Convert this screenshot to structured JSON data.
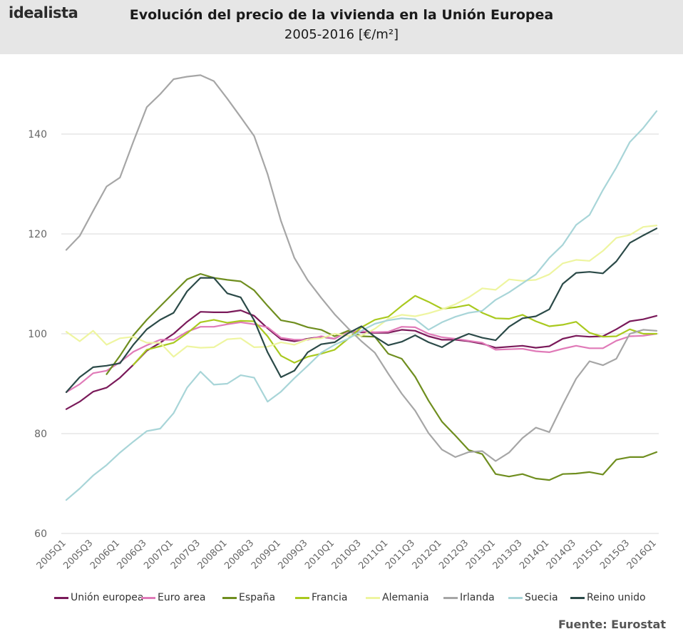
{
  "header": {
    "logo": "idealista",
    "title": "Evolución del precio de la vivienda en la Unión Europea",
    "subtitle": "2005-2016 [€/m²]"
  },
  "source": "Fuente: Eurostat",
  "chart_data": {
    "type": "line",
    "title": "Evolución del precio de la vivienda en la Unión Europea",
    "subtitle": "2005-2016 [€/m²]",
    "xlabel": "",
    "ylabel": "",
    "ylim": [
      60,
      155
    ],
    "yticks": [
      "60",
      "80",
      "100",
      "120",
      "140"
    ],
    "grid": "horizontal",
    "legend": "bottom",
    "x": [
      "2005Q1",
      "2005Q2",
      "2005Q3",
      "2005Q4",
      "2006Q1",
      "2006Q2",
      "2006Q3",
      "2006Q4",
      "2007Q1",
      "2007Q2",
      "2007Q3",
      "2007Q4",
      "2008Q1",
      "2008Q2",
      "2008Q3",
      "2008Q4",
      "2009Q1",
      "2009Q2",
      "2009Q3",
      "2009Q4",
      "2010Q1",
      "2010Q2",
      "2010Q3",
      "2010Q4",
      "2011Q1",
      "2011Q2",
      "2011Q3",
      "2011Q4",
      "2012Q1",
      "2012Q2",
      "2012Q3",
      "2012Q4",
      "2013Q1",
      "2013Q2",
      "2013Q3",
      "2013Q4",
      "2014Q1",
      "2014Q2",
      "2014Q3",
      "2014Q4",
      "2015Q1",
      "2015Q2",
      "2015Q3",
      "2015Q4",
      "2016Q1"
    ],
    "xtick_labels": [
      "2005Q1",
      "2005Q3",
      "2006Q1",
      "2006Q3",
      "2007Q1",
      "2007Q3",
      "2008Q1",
      "2008Q3",
      "2009Q1",
      "2009Q3",
      "2010Q1",
      "2010Q3",
      "2011Q1",
      "2011Q3",
      "2012Q1",
      "2012Q3",
      "2013Q1",
      "2013Q3",
      "2014Q1",
      "2014Q3",
      "2015Q1",
      "2015Q3",
      "2016Q1"
    ],
    "series": [
      {
        "name": "Unión europea",
        "color": "#7a1a5a",
        "values": [
          84.9,
          86.4,
          88.4,
          89.2,
          91.2,
          93.8,
          96.6,
          98.2,
          100.0,
          102.4,
          104.4,
          104.3,
          104.3,
          104.7,
          103.6,
          101.1,
          98.9,
          98.5,
          99.0,
          99.4,
          99.0,
          100.6,
          100.3,
          100.2,
          100.2,
          100.8,
          100.6,
          99.5,
          98.8,
          98.8,
          98.5,
          98.0,
          97.2,
          97.4,
          97.6,
          97.2,
          97.5,
          99.0,
          99.6,
          99.4,
          99.5,
          100.9,
          102.5,
          102.9,
          103.6
        ]
      },
      {
        "name": "Euro area",
        "color": "#e07ab8",
        "values": [
          88.3,
          89.9,
          92.1,
          92.6,
          94.3,
          96.4,
          97.7,
          98.8,
          98.8,
          100.4,
          101.4,
          101.4,
          101.9,
          102.3,
          101.9,
          101.3,
          99.2,
          98.8,
          98.8,
          99.5,
          99.0,
          100.5,
          100.5,
          100.3,
          100.4,
          101.4,
          101.3,
          100.0,
          99.3,
          99.0,
          98.6,
          98.2,
          96.8,
          96.9,
          97.0,
          96.5,
          96.3,
          97.0,
          97.6,
          97.1,
          97.1,
          98.6,
          99.5,
          99.6,
          100.0
        ]
      },
      {
        "name": "España",
        "color": "#6f8e1f",
        "values": [
          null,
          null,
          null,
          91.9,
          95.6,
          99.7,
          102.8,
          105.5,
          108.2,
          110.9,
          112.0,
          111.2,
          110.8,
          110.5,
          108.7,
          105.6,
          102.7,
          102.2,
          101.3,
          100.8,
          99.5,
          100.6,
          99.5,
          99.4,
          96.0,
          95.0,
          91.4,
          86.6,
          82.4,
          79.6,
          76.7,
          75.9,
          71.9,
          71.4,
          71.9,
          71.0,
          70.7,
          71.9,
          72.0,
          72.3,
          71.8,
          74.8,
          75.3,
          75.3,
          76.3
        ]
      },
      {
        "name": "Francia",
        "color": "#a9c91e",
        "values": [
          null,
          null,
          null,
          null,
          null,
          93.8,
          96.8,
          97.5,
          98.2,
          100.1,
          102.3,
          102.8,
          102.2,
          102.6,
          102.5,
          99.5,
          95.6,
          94.2,
          95.4,
          96.0,
          96.8,
          99.0,
          101.3,
          102.8,
          103.4,
          105.6,
          107.6,
          106.4,
          105.0,
          105.3,
          105.8,
          104.2,
          103.1,
          103.0,
          103.8,
          102.5,
          101.5,
          101.8,
          102.4,
          100.2,
          99.4,
          99.5,
          100.9,
          100.0,
          100.0
        ]
      },
      {
        "name": "Alemania",
        "color": "#eef5a0",
        "values": [
          100.4,
          98.5,
          100.6,
          97.8,
          99.1,
          99.4,
          98.2,
          98.2,
          95.4,
          97.5,
          97.2,
          97.3,
          98.9,
          99.1,
          97.3,
          97.4,
          98.3,
          97.8,
          98.9,
          99.1,
          100.0,
          99.6,
          99.6,
          101.0,
          103.0,
          103.8,
          103.5,
          104.1,
          104.9,
          105.9,
          107.3,
          109.1,
          108.8,
          110.9,
          110.6,
          110.8,
          111.9,
          114.1,
          114.8,
          114.6,
          116.6,
          119.2,
          119.8,
          121.4,
          121.7
        ]
      },
      {
        "name": "Irlanda",
        "color": "#a6a6a6",
        "values": [
          116.8,
          119.6,
          124.6,
          129.5,
          131.3,
          138.5,
          145.4,
          148.0,
          151.0,
          151.5,
          151.8,
          150.6,
          147.1,
          143.4,
          139.6,
          132.0,
          122.6,
          115.2,
          110.7,
          107.2,
          103.9,
          101.1,
          98.5,
          96.2,
          92.0,
          88.0,
          84.6,
          80.1,
          76.8,
          75.3,
          76.3,
          76.5,
          74.5,
          76.2,
          79.1,
          81.2,
          80.3,
          85.8,
          91.0,
          94.5,
          93.7,
          95.0,
          100.0,
          100.8,
          100.6
        ]
      },
      {
        "name": "Suecia",
        "color": "#a8d5d8",
        "values": [
          66.7,
          69.0,
          71.6,
          73.7,
          76.2,
          78.4,
          80.5,
          81.0,
          84.1,
          89.2,
          92.4,
          89.8,
          90.0,
          91.7,
          91.2,
          86.4,
          88.4,
          91.1,
          93.6,
          96.2,
          97.8,
          99.0,
          100.6,
          102.0,
          102.7,
          103.1,
          102.9,
          100.8,
          102.3,
          103.4,
          104.2,
          104.6,
          106.8,
          108.3,
          110.1,
          111.9,
          115.2,
          117.8,
          121.8,
          123.8,
          128.8,
          133.3,
          138.4,
          141.2,
          144.6
        ]
      },
      {
        "name": "Reino unido",
        "color": "#2b4a48",
        "values": [
          88.3,
          91.3,
          93.3,
          93.6,
          94.1,
          97.8,
          100.9,
          102.8,
          104.2,
          108.5,
          111.2,
          111.2,
          108.1,
          107.3,
          102.7,
          96.3,
          91.3,
          92.6,
          96.3,
          97.9,
          98.3,
          100.1,
          101.5,
          99.4,
          97.7,
          98.4,
          99.7,
          98.3,
          97.3,
          98.9,
          100.0,
          99.2,
          98.7,
          101.4,
          103.1,
          103.5,
          104.9,
          110.0,
          112.2,
          112.4,
          112.1,
          114.5,
          118.2,
          119.7,
          121.1
        ]
      }
    ]
  }
}
